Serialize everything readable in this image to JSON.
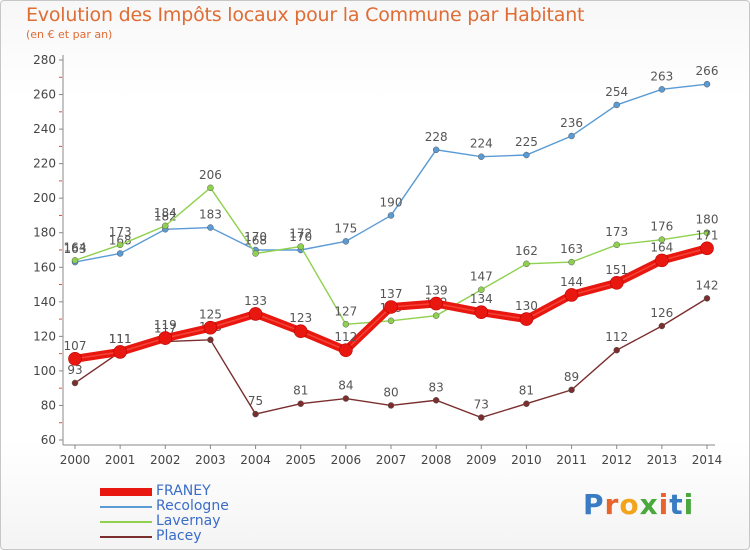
{
  "header": {
    "title": "Evolution des Impôts locaux pour la Commune par Habitant",
    "subtitle": "(en € et par an)"
  },
  "logo": {
    "text": "Proxiti",
    "letter_colors": [
      "#3a7cc4",
      "#e8642c",
      "#f2a51c",
      "#4aa83c",
      "#e8642c",
      "#3a7cc4",
      "#4aa83c"
    ]
  },
  "chart_data": {
    "type": "line",
    "title": "Evolution des Impôts locaux pour la Commune par Habitant",
    "subtitle": "(en € et par an)",
    "x": [
      "2000",
      "2001",
      "2002",
      "2003",
      "2004",
      "2005",
      "2006",
      "2007",
      "2008",
      "2009",
      "2010",
      "2011",
      "2012",
      "2013",
      "2014"
    ],
    "ylim": [
      60,
      280
    ],
    "yticks": [
      60,
      80,
      100,
      120,
      140,
      160,
      180,
      200,
      220,
      240,
      260,
      280
    ],
    "grid": false,
    "legend_position": "bottom-left",
    "series": [
      {
        "name": "FRANEY",
        "color": "#e8170f",
        "emphasis": true,
        "values": [
          107,
          111,
          119,
          125,
          133,
          123,
          112,
          137,
          139,
          134,
          130,
          144,
          151,
          164,
          171
        ]
      },
      {
        "name": "Recologne",
        "color": "#5b9bd5",
        "emphasis": false,
        "values": [
          163,
          168,
          182,
          183,
          170,
          170,
          175,
          190,
          228,
          224,
          225,
          236,
          254,
          263,
          266
        ]
      },
      {
        "name": "Lavernay",
        "color": "#8fd14f",
        "emphasis": false,
        "values": [
          164,
          173,
          184,
          206,
          168,
          172,
          127,
          129,
          132,
          147,
          162,
          163,
          173,
          176,
          180
        ]
      },
      {
        "name": "Placey",
        "color": "#7a2e2e",
        "emphasis": false,
        "values": [
          93,
          111,
          117,
          118,
          75,
          81,
          84,
          80,
          83,
          73,
          81,
          89,
          112,
          126,
          142
        ]
      }
    ]
  }
}
